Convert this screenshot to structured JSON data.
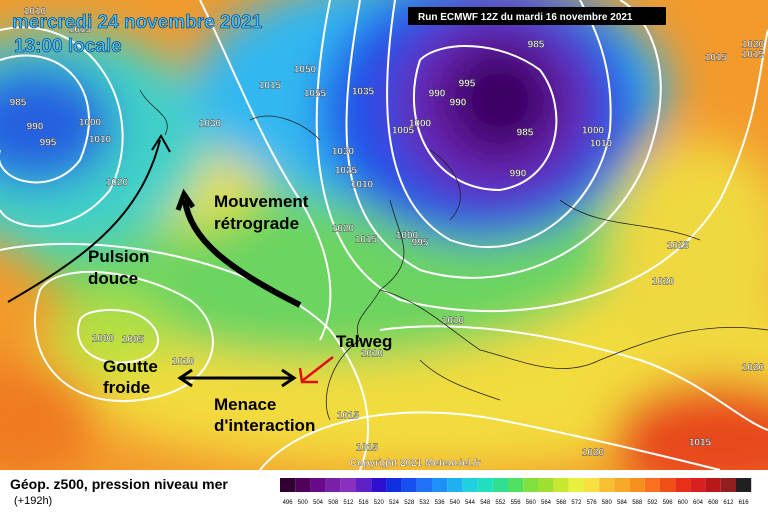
{
  "header": {
    "date": "mercredi 24 novembre 2021",
    "time": "13:00 locale",
    "run": "Run ECMWF 12Z du mardi 16 novembre 2021"
  },
  "isobar_labels": [
    "1010",
    "1015",
    "985",
    "990",
    "995",
    "1000",
    "1010",
    "1020",
    "1030",
    "1050",
    "1015",
    "1055",
    "1035",
    "990",
    "995",
    "990",
    "1000",
    "1005",
    "985",
    "990",
    "985",
    "1030",
    "1025",
    "1010",
    "1020",
    "1015",
    "1000",
    "995",
    "1000",
    "1010",
    "1020",
    "1015",
    "1015",
    "1025",
    "1020",
    "1010",
    "1010",
    "1000",
    "1005",
    "1010",
    "1015",
    "1015",
    "1020",
    "1015",
    "1020"
  ],
  "annotations": {
    "movement_line1": "Mouvement",
    "movement_line2": "rétrograde",
    "pulse_line1": "Pulsion",
    "pulse_line2": "douce",
    "trough": "Talweg",
    "cutoff_line1": "Goutte",
    "cutoff_line2": "froide",
    "threat_line1": "Menace",
    "threat_line2": "d'interaction"
  },
  "footer": {
    "product": "Géop. z500, pression niveau mer",
    "lead": "(+192h)",
    "copyright": "Copyright 2021 Meteociel.fr"
  },
  "legend": {
    "labels": [
      496,
      500,
      504,
      508,
      512,
      516,
      520,
      524,
      528,
      532,
      536,
      540,
      544,
      548,
      552,
      556,
      560,
      564,
      568,
      572,
      576,
      580,
      584,
      588,
      592,
      596,
      600,
      604,
      608,
      612,
      616
    ],
    "colors": [
      "#300030",
      "#50005a",
      "#6a0a8a",
      "#7a20a8",
      "#8a30c0",
      "#6020c8",
      "#3010d0",
      "#1030e0",
      "#1850f0",
      "#2070f8",
      "#2090f8",
      "#20b0f0",
      "#20d0e0",
      "#20e0c0",
      "#30e090",
      "#50e060",
      "#80e040",
      "#a0e030",
      "#c8e830",
      "#e8f040",
      "#f8e040",
      "#f8c030",
      "#f8a828",
      "#f89020",
      "#f87020",
      "#f05018",
      "#e83018",
      "#d82020",
      "#b81818",
      "#902020",
      "#202020"
    ]
  }
}
